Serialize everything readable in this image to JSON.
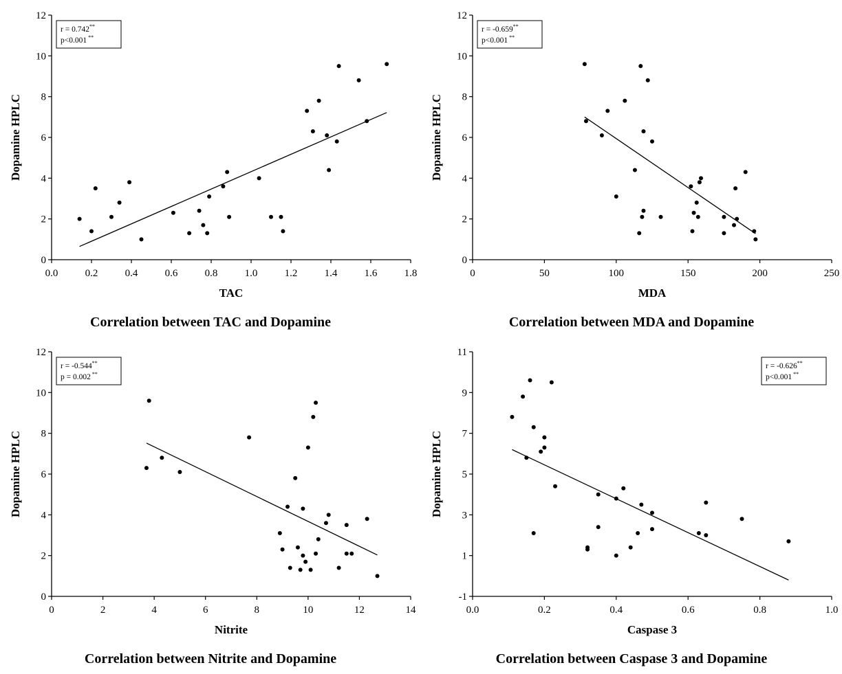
{
  "chart_data": [
    {
      "type": "scatter",
      "caption": "Correlation between TAC and Dopamine",
      "xlabel": "TAC",
      "ylabel": "Dopamine HPLC",
      "xlim": [
        0,
        1.8
      ],
      "ylim": [
        0,
        12
      ],
      "xticks": [
        "0.0",
        "0.2",
        "0.4",
        "0.6",
        "0.8",
        "1.0",
        "1.2",
        "1.4",
        "1.6",
        "1.8"
      ],
      "yticks": [
        "0",
        "2",
        "4",
        "6",
        "8",
        "10",
        "12"
      ],
      "stats": {
        "r": "r = 0.742",
        "p": "p<0.001"
      },
      "stats_position": "top-left",
      "trendline": {
        "x1": 0.14,
        "y1": 0.65,
        "x2": 1.68,
        "y2": 7.22
      },
      "points": [
        [
          0.14,
          2.0
        ],
        [
          0.2,
          1.4
        ],
        [
          0.22,
          3.5
        ],
        [
          0.3,
          2.1
        ],
        [
          0.34,
          2.8
        ],
        [
          0.39,
          3.8
        ],
        [
          0.45,
          1.0
        ],
        [
          0.61,
          2.3
        ],
        [
          0.69,
          1.3
        ],
        [
          0.74,
          2.4
        ],
        [
          0.76,
          1.7
        ],
        [
          0.78,
          1.3
        ],
        [
          0.79,
          3.1
        ],
        [
          0.86,
          3.6
        ],
        [
          0.88,
          4.3
        ],
        [
          0.89,
          2.1
        ],
        [
          1.04,
          4.0
        ],
        [
          1.1,
          2.1
        ],
        [
          1.15,
          2.1
        ],
        [
          1.16,
          1.4
        ],
        [
          1.28,
          7.3
        ],
        [
          1.31,
          6.3
        ],
        [
          1.34,
          7.8
        ],
        [
          1.38,
          6.1
        ],
        [
          1.39,
          4.4
        ],
        [
          1.43,
          5.8
        ],
        [
          1.44,
          9.5
        ],
        [
          1.54,
          8.8
        ],
        [
          1.58,
          6.8
        ],
        [
          1.68,
          9.6
        ]
      ]
    },
    {
      "type": "scatter",
      "caption": "Correlation between MDA and Dopamine",
      "xlabel": "MDA",
      "ylabel": "Dopamine HPLC",
      "xlim": [
        0,
        250
      ],
      "ylim": [
        0,
        12
      ],
      "xticks": [
        "0",
        "50",
        "100",
        "150",
        "200",
        "250"
      ],
      "yticks": [
        "0",
        "2",
        "4",
        "6",
        "8",
        "10",
        "12"
      ],
      "stats": {
        "r": "r = -0.659",
        "p": "p<0.001"
      },
      "stats_position": "top-left",
      "trendline": {
        "x1": 78,
        "y1": 7.0,
        "x2": 197,
        "y2": 1.28
      },
      "points": [
        [
          78,
          9.6
        ],
        [
          79,
          6.8
        ],
        [
          90,
          6.1
        ],
        [
          94,
          7.3
        ],
        [
          100,
          3.1
        ],
        [
          106,
          7.8
        ],
        [
          113,
          4.4
        ],
        [
          116,
          1.3
        ],
        [
          117,
          9.5
        ],
        [
          118,
          2.1
        ],
        [
          119,
          2.4
        ],
        [
          119,
          6.3
        ],
        [
          122,
          8.8
        ],
        [
          125,
          5.8
        ],
        [
          131,
          2.1
        ],
        [
          152,
          3.6
        ],
        [
          153,
          1.4
        ],
        [
          154,
          2.3
        ],
        [
          156,
          2.8
        ],
        [
          157,
          2.1
        ],
        [
          158,
          3.8
        ],
        [
          159,
          4.0
        ],
        [
          175,
          2.1
        ],
        [
          175,
          1.3
        ],
        [
          182,
          1.7
        ],
        [
          183,
          3.5
        ],
        [
          184,
          2.0
        ],
        [
          190,
          4.3
        ],
        [
          196,
          1.4
        ],
        [
          197,
          1.0
        ]
      ]
    },
    {
      "type": "scatter",
      "caption": "Correlation between Nitrite and Dopamine",
      "xlabel": "Nitrite",
      "ylabel": "Dopamine HPLC",
      "xlim": [
        0,
        14
      ],
      "ylim": [
        0,
        12
      ],
      "xticks": [
        "0",
        "2",
        "4",
        "6",
        "8",
        "10",
        "12",
        "14"
      ],
      "yticks": [
        "0",
        "2",
        "4",
        "6",
        "8",
        "10",
        "12"
      ],
      "stats": {
        "r": "r = -0.544",
        "p": "p = 0.002"
      },
      "stats_position": "top-left",
      "trendline": {
        "x1": 3.7,
        "y1": 7.52,
        "x2": 12.7,
        "y2": 2.03
      },
      "points": [
        [
          3.7,
          6.3
        ],
        [
          3.8,
          9.6
        ],
        [
          4.3,
          6.8
        ],
        [
          5.0,
          6.1
        ],
        [
          7.7,
          7.8
        ],
        [
          8.9,
          3.1
        ],
        [
          9.0,
          2.3
        ],
        [
          9.2,
          4.4
        ],
        [
          9.3,
          1.4
        ],
        [
          9.5,
          5.8
        ],
        [
          9.6,
          2.4
        ],
        [
          9.7,
          1.3
        ],
        [
          9.8,
          4.3
        ],
        [
          9.8,
          2.0
        ],
        [
          9.9,
          1.7
        ],
        [
          10.0,
          7.3
        ],
        [
          10.1,
          1.3
        ],
        [
          10.2,
          8.8
        ],
        [
          10.3,
          9.5
        ],
        [
          10.3,
          2.1
        ],
        [
          10.4,
          2.8
        ],
        [
          10.7,
          3.6
        ],
        [
          10.8,
          4.0
        ],
        [
          11.2,
          1.4
        ],
        [
          11.5,
          3.5
        ],
        [
          11.5,
          2.1
        ],
        [
          11.7,
          2.1
        ],
        [
          12.3,
          3.8
        ],
        [
          12.7,
          1.0
        ]
      ]
    },
    {
      "type": "scatter",
      "caption": "Correlation between Caspase 3 and Dopamine",
      "xlabel": "Caspase 3",
      "ylabel": "Dopamine HPLC",
      "xlim": [
        0,
        1
      ],
      "ylim": [
        -1,
        11
      ],
      "xticks": [
        "0.0",
        "0.2",
        "0.4",
        "0.6",
        "0.8",
        "1.0"
      ],
      "yticks": [
        "-1",
        "1",
        "3",
        "5",
        "7",
        "9",
        "11"
      ],
      "stats": {
        "r": "r = -0.626",
        "p": "p<0.001"
      },
      "stats_position": "top-right",
      "trendline": {
        "x1": 0.11,
        "y1": 6.2,
        "x2": 0.88,
        "y2": -0.2
      },
      "points": [
        [
          0.11,
          7.8
        ],
        [
          0.14,
          8.8
        ],
        [
          0.15,
          5.8
        ],
        [
          0.16,
          9.6
        ],
        [
          0.17,
          7.3
        ],
        [
          0.17,
          2.1
        ],
        [
          0.19,
          6.1
        ],
        [
          0.2,
          6.8
        ],
        [
          0.2,
          6.3
        ],
        [
          0.22,
          9.5
        ],
        [
          0.23,
          4.4
        ],
        [
          0.32,
          1.4
        ],
        [
          0.32,
          1.3
        ],
        [
          0.35,
          4.0
        ],
        [
          0.35,
          2.4
        ],
        [
          0.4,
          3.8
        ],
        [
          0.4,
          1.0
        ],
        [
          0.42,
          4.3
        ],
        [
          0.44,
          1.4
        ],
        [
          0.46,
          2.1
        ],
        [
          0.47,
          3.5
        ],
        [
          0.5,
          3.1
        ],
        [
          0.5,
          2.3
        ],
        [
          0.63,
          2.1
        ],
        [
          0.65,
          3.6
        ],
        [
          0.65,
          2.0
        ],
        [
          0.75,
          2.8
        ],
        [
          0.88,
          1.7
        ]
      ]
    }
  ]
}
